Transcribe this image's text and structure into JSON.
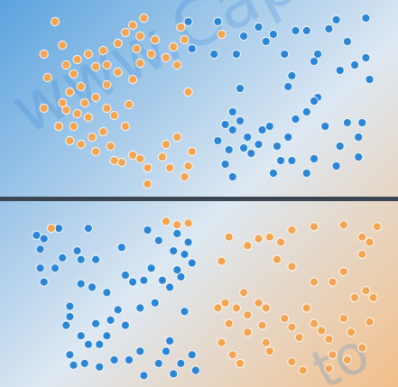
{
  "colors": {
    "blue": "#2c86d6",
    "orange": "#f3a552",
    "divider": "#3c4652",
    "bg_blue": "#5ba3df",
    "bg_mid": "#dde8f2",
    "bg_orange": "#f2bf8a",
    "watermark": "#2e7fd6"
  },
  "watermark": {
    "top_text": "www.Cap",
    "bottom_text": "to"
  },
  "chart_data": [
    {
      "type": "scatter",
      "title": "",
      "xlabel": "",
      "ylabel": "",
      "xlim": [
        0,
        1
      ],
      "ylim": [
        0,
        1
      ],
      "grid": false,
      "legend": "none",
      "series": [
        {
          "color": "orange",
          "points": [
            [
              0.1,
              0.94
            ],
            [
              0.12,
              0.81
            ],
            [
              0.07,
              0.76
            ],
            [
              0.13,
              0.7
            ],
            [
              0.16,
              0.73
            ],
            [
              0.19,
              0.76
            ],
            [
              0.21,
              0.69
            ],
            [
              0.15,
              0.65
            ],
            [
              0.14,
              0.55
            ],
            [
              0.13,
              0.45
            ],
            [
              0.16,
              0.43
            ],
            [
              0.18,
              0.49
            ],
            [
              0.19,
              0.41
            ],
            [
              0.21,
              0.52
            ],
            [
              0.15,
              0.36
            ],
            [
              0.11,
              0.36
            ],
            [
              0.14,
              0.28
            ],
            [
              0.17,
              0.26
            ],
            [
              0.2,
              0.3
            ],
            [
              0.21,
              0.22
            ],
            [
              0.25,
              0.25
            ],
            [
              0.23,
              0.33
            ],
            [
              0.26,
              0.42
            ],
            [
              0.24,
              0.59
            ],
            [
              0.24,
              0.7
            ],
            [
              0.23,
              0.78
            ],
            [
              0.27,
              0.82
            ],
            [
              0.29,
              0.88
            ],
            [
              0.31,
              0.92
            ],
            [
              0.34,
              0.96
            ],
            [
              0.32,
              0.79
            ],
            [
              0.37,
              0.84
            ],
            [
              0.33,
              0.71
            ],
            [
              0.36,
              0.76
            ],
            [
              0.4,
              0.74
            ],
            [
              0.42,
              0.8
            ],
            [
              0.43,
              0.7
            ],
            [
              0.44,
              0.91
            ],
            [
              0.45,
              0.84
            ],
            [
              0.46,
              0.55
            ],
            [
              0.31,
              0.62
            ],
            [
              0.3,
              0.48
            ],
            [
              0.29,
              0.36
            ],
            [
              0.31,
              0.2
            ],
            [
              0.33,
              0.18
            ],
            [
              0.28,
              0.16
            ],
            [
              0.26,
              0.17
            ],
            [
              0.35,
              0.13
            ],
            [
              0.4,
              0.26
            ],
            [
              0.39,
              0.19
            ],
            [
              0.41,
              0.13
            ],
            [
              0.43,
              0.3
            ],
            [
              0.45,
              0.08
            ],
            [
              0.46,
              0.14
            ],
            [
              0.47,
              0.22
            ],
            [
              0.35,
              0.04
            ],
            [
              0.08,
              0.63
            ],
            [
              0.12,
              0.49
            ],
            [
              0.17,
              0.58
            ],
            [
              0.07,
              0.46
            ],
            [
              0.24,
              0.46
            ],
            [
              0.27,
              0.66
            ],
            [
              0.33,
              0.86
            ],
            [
              0.55,
              0.87
            ]
          ]
        },
        {
          "color": "blue",
          "points": [
            [
              0.46,
              0.94
            ],
            [
              0.54,
              0.94
            ],
            [
              0.61,
              0.86
            ],
            [
              0.65,
              0.91
            ],
            [
              0.67,
              0.83
            ],
            [
              0.69,
              0.87
            ],
            [
              0.72,
              0.76
            ],
            [
              0.75,
              0.89
            ],
            [
              0.78,
              0.89
            ],
            [
              0.84,
              0.9
            ],
            [
              0.86,
              0.95
            ],
            [
              0.89,
              0.83
            ],
            [
              0.94,
              0.96
            ],
            [
              0.91,
              0.7
            ],
            [
              0.94,
              0.74
            ],
            [
              0.95,
              0.62
            ],
            [
              0.87,
              0.67
            ],
            [
              0.81,
              0.76
            ],
            [
              0.8,
              0.72
            ],
            [
              0.73,
              0.58
            ],
            [
              0.59,
              0.76
            ],
            [
              0.53,
              0.76
            ],
            [
              0.47,
              0.79
            ],
            [
              0.6,
              0.57
            ],
            [
              0.58,
              0.44
            ],
            [
              0.56,
              0.37
            ],
            [
              0.58,
              0.34
            ],
            [
              0.6,
              0.39
            ],
            [
              0.62,
              0.3
            ],
            [
              0.54,
              0.28
            ],
            [
              0.57,
              0.23
            ],
            [
              0.61,
              0.24
            ],
            [
              0.65,
              0.26
            ],
            [
              0.63,
              0.21
            ],
            [
              0.66,
              0.34
            ],
            [
              0.68,
              0.36
            ],
            [
              0.7,
              0.25
            ],
            [
              0.73,
              0.3
            ],
            [
              0.74,
              0.17
            ],
            [
              0.71,
              0.17
            ],
            [
              0.75,
              0.4
            ],
            [
              0.78,
              0.44
            ],
            [
              0.81,
              0.52
            ],
            [
              0.8,
              0.5
            ],
            [
              0.83,
              0.36
            ],
            [
              0.89,
              0.38
            ],
            [
              0.93,
              0.38
            ],
            [
              0.92,
              0.3
            ],
            [
              0.87,
              0.25
            ],
            [
              0.92,
              0.19
            ],
            [
              0.86,
              0.14
            ],
            [
              0.8,
              0.18
            ],
            [
              0.78,
              0.1
            ],
            [
              0.69,
              0.1
            ],
            [
              0.58,
              0.08
            ],
            [
              0.56,
              0.15
            ],
            [
              0.74,
              0.64
            ]
          ]
        }
      ]
    },
    {
      "type": "scatter",
      "title": "",
      "xlabel": "",
      "ylabel": "",
      "xlim": [
        0,
        1
      ],
      "ylim": [
        0,
        1
      ],
      "grid": false,
      "legend": "none",
      "series": [
        {
          "color": "blue",
          "points": [
            [
              0.05,
              0.85
            ],
            [
              0.11,
              0.89
            ],
            [
              0.06,
              0.77
            ],
            [
              0.12,
              0.72
            ],
            [
              0.1,
              0.66
            ],
            [
              0.16,
              0.76
            ],
            [
              0.17,
              0.71
            ],
            [
              0.21,
              0.71
            ],
            [
              0.06,
              0.66
            ],
            [
              0.07,
              0.58
            ],
            [
              0.17,
              0.57
            ],
            [
              0.2,
              0.55
            ],
            [
              0.24,
              0.52
            ],
            [
              0.29,
              0.62
            ],
            [
              0.31,
              0.58
            ],
            [
              0.36,
              0.66
            ],
            [
              0.34,
              0.59
            ],
            [
              0.39,
              0.59
            ],
            [
              0.44,
              0.61
            ],
            [
              0.41,
              0.55
            ],
            [
              0.43,
              0.65
            ],
            [
              0.47,
              0.69
            ],
            [
              0.42,
              0.76
            ],
            [
              0.46,
              0.81
            ],
            [
              0.35,
              0.88
            ],
            [
              0.43,
              0.86
            ],
            [
              0.45,
              0.74
            ],
            [
              0.14,
              0.44
            ],
            [
              0.14,
              0.38
            ],
            [
              0.13,
              0.33
            ],
            [
              0.17,
              0.27
            ],
            [
              0.21,
              0.34
            ],
            [
              0.25,
              0.36
            ],
            [
              0.24,
              0.27
            ],
            [
              0.27,
              0.42
            ],
            [
              0.29,
              0.33
            ],
            [
              0.22,
              0.22
            ],
            [
              0.19,
              0.22
            ],
            [
              0.14,
              0.16
            ],
            [
              0.15,
              0.1
            ],
            [
              0.18,
              0.11
            ],
            [
              0.22,
              0.09
            ],
            [
              0.26,
              0.13
            ],
            [
              0.3,
              0.13
            ],
            [
              0.33,
              0.18
            ],
            [
              0.34,
              0.04
            ],
            [
              0.38,
              0.11
            ],
            [
              0.4,
              0.18
            ],
            [
              0.42,
              0.05
            ],
            [
              0.44,
              0.11
            ],
            [
              0.47,
              0.16
            ],
            [
              0.48,
              0.07
            ],
            [
              0.33,
              0.43
            ],
            [
              0.37,
              0.46
            ],
            [
              0.45,
              0.41
            ],
            [
              0.41,
              0.24
            ],
            [
              0.07,
              0.83
            ],
            [
              0.19,
              0.89
            ],
            [
              0.28,
              0.78
            ],
            [
              0.38,
              0.82
            ]
          ]
        },
        {
          "color": "orange",
          "points": [
            [
              0.09,
              0.89
            ],
            [
              0.4,
              0.93
            ],
            [
              0.43,
              0.91
            ],
            [
              0.46,
              0.92
            ],
            [
              0.55,
              0.7
            ],
            [
              0.57,
              0.84
            ],
            [
              0.62,
              0.79
            ],
            [
              0.65,
              0.83
            ],
            [
              0.68,
              0.84
            ],
            [
              0.71,
              0.81
            ],
            [
              0.74,
              0.88
            ],
            [
              0.8,
              0.9
            ],
            [
              0.88,
              0.91
            ],
            [
              0.93,
              0.84
            ],
            [
              0.95,
              0.81
            ],
            [
              0.97,
              0.9
            ],
            [
              0.93,
              0.74
            ],
            [
              0.88,
              0.64
            ],
            [
              0.94,
              0.53
            ],
            [
              0.91,
              0.49
            ],
            [
              0.96,
              0.49
            ],
            [
              0.85,
              0.58
            ],
            [
              0.8,
              0.58
            ],
            [
              0.74,
              0.67
            ],
            [
              0.7,
              0.71
            ],
            [
              0.61,
              0.52
            ],
            [
              0.56,
              0.46
            ],
            [
              0.54,
              0.43
            ],
            [
              0.59,
              0.43
            ],
            [
              0.62,
              0.39
            ],
            [
              0.65,
              0.46
            ],
            [
              0.67,
              0.43
            ],
            [
              0.66,
              0.33
            ],
            [
              0.62,
              0.29
            ],
            [
              0.57,
              0.34
            ],
            [
              0.55,
              0.23
            ],
            [
              0.58,
              0.16
            ],
            [
              0.6,
              0.11
            ],
            [
              0.67,
              0.23
            ],
            [
              0.68,
              0.18
            ],
            [
              0.72,
              0.37
            ],
            [
              0.74,
              0.32
            ],
            [
              0.76,
              0.26
            ],
            [
              0.78,
              0.43
            ],
            [
              0.8,
              0.34
            ],
            [
              0.82,
              0.3
            ],
            [
              0.84,
              0.25
            ],
            [
              0.85,
              0.16
            ],
            [
              0.88,
              0.37
            ],
            [
              0.9,
              0.29
            ],
            [
              0.93,
              0.2
            ],
            [
              0.89,
              0.13
            ],
            [
              0.84,
              0.08
            ],
            [
              0.77,
              0.07
            ],
            [
              0.74,
              0.12
            ],
            [
              0.95,
              0.35
            ]
          ]
        }
      ]
    }
  ]
}
